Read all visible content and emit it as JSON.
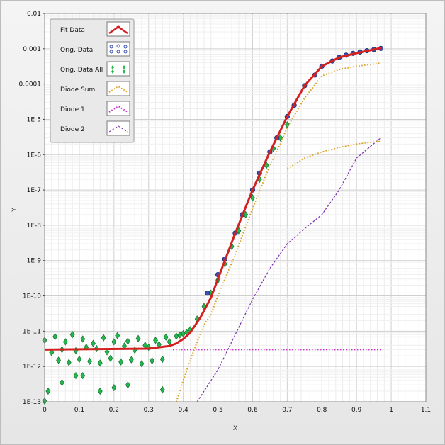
{
  "chart_data": {
    "type": "scatter",
    "xlabel": "X",
    "ylabel": "Y",
    "xlim": [
      0,
      1.1
    ],
    "ylim_log10": [
      -13,
      -2
    ],
    "y_scale": "log",
    "grid": true,
    "legend_position": "top-left",
    "x_ticks": [
      "0",
      "0.1",
      "0.2",
      "0.3",
      "0.4",
      "0.5",
      "0.6",
      "0.7",
      "0.8",
      "0.9",
      "1",
      "1.1"
    ],
    "y_ticks": [
      "0.01",
      "0.001",
      "0.0001",
      "1E-5",
      "1E-6",
      "1E-7",
      "1E-8",
      "1E-9",
      "1E-10",
      "1E-11",
      "1E-12",
      "1E-13"
    ],
    "colors": {
      "fit": "#d42020",
      "orig": "#3a52b0",
      "orig_all": "#22b84a",
      "diode_sum": "#d8a020",
      "diode1": "#cc33cc",
      "diode2": "#7a2fb0",
      "plot_bg": "#ffffff",
      "grid": "#d9d9d9"
    },
    "series": [
      {
        "name": "Fit Data",
        "key": "fit",
        "style": "line",
        "x": [
          0,
          0.3,
          0.36,
          0.38,
          0.4,
          0.42,
          0.45,
          0.48,
          0.5,
          0.55,
          0.6,
          0.65,
          0.7,
          0.75,
          0.8,
          0.85,
          0.9,
          0.95,
          0.97
        ],
        "y": [
          3e-12,
          3.2e-12,
          3.8e-12,
          4.5e-12,
          6e-12,
          9e-12,
          2.5e-11,
          9e-11,
          3e-10,
          6e-09,
          1e-07,
          1.2e-06,
          1.2e-05,
          9e-05,
          0.00032,
          0.00057,
          0.00075,
          0.00095,
          0.00105
        ]
      },
      {
        "name": "Orig. Data",
        "key": "orig",
        "style": "circles",
        "x": [
          0.47,
          0.5,
          0.52,
          0.55,
          0.57,
          0.6,
          0.62,
          0.65,
          0.67,
          0.7,
          0.72,
          0.75,
          0.78,
          0.8,
          0.83,
          0.85,
          0.87,
          0.89,
          0.91,
          0.93,
          0.95,
          0.97
        ],
        "y": [
          1.2e-10,
          4e-10,
          1.1e-09,
          6e-09,
          2e-08,
          1e-07,
          3e-07,
          1.2e-06,
          3e-06,
          1.2e-05,
          2.5e-05,
          9e-05,
          0.00018,
          0.00032,
          0.00045,
          0.00057,
          0.00066,
          0.00074,
          0.00081,
          0.00088,
          0.00095,
          0.00102
        ]
      },
      {
        "name": "Orig. Data All",
        "key": "orig_all",
        "style": "diamonds",
        "x": [
          0,
          0.02,
          0.03,
          0.05,
          0.06,
          0.08,
          0.09,
          0.11,
          0.12,
          0.14,
          0.15,
          0.17,
          0.18,
          0.2,
          0.21,
          0.23,
          0.24,
          0.26,
          0.27,
          0.29,
          0.3,
          0.32,
          0.33,
          0.35,
          0.36,
          0.38,
          0.39,
          0.4,
          0.41,
          0.42,
          0.04,
          0.07,
          0.1,
          0.13,
          0.16,
          0.19,
          0.22,
          0.25,
          0.28,
          0.31,
          0.34,
          0.01,
          0.05,
          0.09,
          0.11,
          0.16,
          0.2,
          0.24,
          0.34,
          0.0,
          0.44,
          0.46,
          0.48,
          0.5,
          0.52,
          0.54,
          0.56,
          0.58,
          0.6,
          0.62,
          0.64,
          0.66,
          0.68,
          0.7
        ],
        "y": [
          5.5e-12,
          2.5e-12,
          7e-12,
          3e-12,
          5e-12,
          8e-12,
          2.8e-12,
          6e-12,
          3.5e-12,
          4.5e-12,
          3.2e-12,
          6.5e-12,
          2.6e-12,
          5e-12,
          7.5e-12,
          3.8e-12,
          5.2e-12,
          2.9e-12,
          6.2e-12,
          4e-12,
          3.5e-12,
          5.5e-12,
          4.2e-12,
          6.8e-12,
          5e-12,
          7.2e-12,
          7.8e-12,
          8.5e-12,
          9.2e-12,
          1.1e-11,
          1.5e-12,
          1.3e-12,
          1.6e-12,
          1.4e-12,
          1.25e-12,
          1.7e-12,
          1.35e-12,
          1.55e-12,
          1.2e-12,
          1.45e-12,
          1.6e-12,
          2e-13,
          3.5e-13,
          5.5e-13,
          5.5e-13,
          2e-13,
          2.5e-13,
          3e-13,
          2.2e-13,
          1.05e-13,
          2.2e-11,
          5e-11,
          1.2e-10,
          2.8e-10,
          8e-10,
          2.5e-09,
          7e-09,
          2e-08,
          6e-08,
          2e-07,
          5e-07,
          1.5e-06,
          3e-06,
          7e-06
        ]
      },
      {
        "name": "Diode Sum",
        "key": "diode_sum",
        "style": "dotted",
        "x": [
          0.38,
          0.4,
          0.42,
          0.44,
          0.46,
          0.48,
          0.5,
          0.55,
          0.6,
          0.65,
          0.68,
          0.7,
          0.75,
          0.8,
          0.85,
          0.9,
          0.95,
          0.97
        ],
        "y": [
          1e-13,
          4e-13,
          1.5e-12,
          5e-12,
          1.5e-11,
          3e-11,
          1e-10,
          1.5e-09,
          3e-08,
          5e-07,
          2e-06,
          6e-06,
          4e-05,
          0.00017,
          0.00026,
          0.00032,
          0.00037,
          0.00039
        ]
      },
      {
        "name": "Diode 1",
        "key": "diode1",
        "style": "dotted",
        "x": [
          0.37,
          0.97
        ],
        "y": [
          3e-12,
          3e-12
        ]
      },
      {
        "name": "Diode 2",
        "key": "diode2",
        "style": "dashed",
        "x": [
          0.44,
          0.5,
          0.55,
          0.6,
          0.65,
          0.7,
          0.75,
          0.8,
          0.85,
          0.9,
          0.97
        ],
        "y": [
          1e-13,
          8e-13,
          8e-12,
          8e-11,
          6e-10,
          3e-09,
          8e-09,
          2e-08,
          1e-07,
          8e-07,
          3e-06
        ]
      }
    ],
    "extra_curves": [
      {
        "key": "diode_sum_saturation",
        "style": "dotted",
        "x": [
          0.7,
          0.75,
          0.8,
          0.85,
          0.9,
          0.95,
          0.97
        ],
        "y": [
          4e-07,
          8e-07,
          1.2e-06,
          1.6e-06,
          2e-06,
          2.3e-06,
          2.4e-06
        ]
      }
    ]
  }
}
